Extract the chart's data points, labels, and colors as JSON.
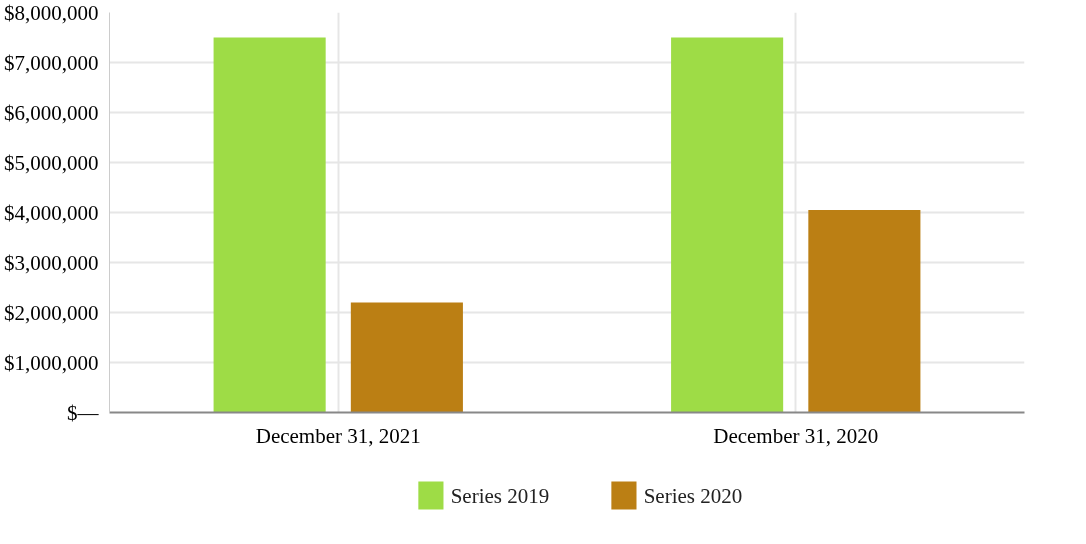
{
  "chart_data": {
    "type": "bar",
    "categories": [
      "December 31, 2021",
      "December 31, 2020"
    ],
    "series": [
      {
        "name": "Series 2019",
        "color": "#9edc46",
        "values": [
          7500000,
          7500000
        ]
      },
      {
        "name": "Series 2020",
        "color": "#bb7f14",
        "values": [
          2200000,
          4050000
        ]
      }
    ],
    "ylim": [
      0,
      8000000
    ],
    "yticks": [
      {
        "value": 0,
        "label": "$—"
      },
      {
        "value": 1000000,
        "label": "$1,000,000"
      },
      {
        "value": 2000000,
        "label": "$2,000,000"
      },
      {
        "value": 3000000,
        "label": "$3,000,000"
      },
      {
        "value": 4000000,
        "label": "$4,000,000"
      },
      {
        "value": 5000000,
        "label": "$5,000,000"
      },
      {
        "value": 6000000,
        "label": "$6,000,000"
      },
      {
        "value": 7000000,
        "label": "$7,000,000"
      },
      {
        "value": 8000000,
        "label": "$8,000,000"
      }
    ],
    "grid": true,
    "legend": "bottom"
  }
}
